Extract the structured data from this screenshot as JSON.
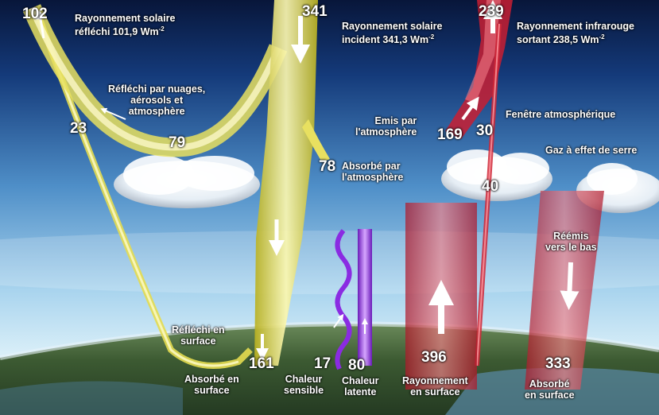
{
  "labels": {
    "reflected_title": "Rayonnement solaire\nréfléchi 101,9 Wm",
    "reflected_exp": "-2",
    "incident_title": "Rayonnement solaire\nincident 341,3 Wm",
    "incident_exp": "-2",
    "outgoing_ir_title": "Rayonnement infrarouge\nsortant 238,5 Wm",
    "outgoing_ir_exp": "-2",
    "reflected_clouds": "Réfléchi par nuages,\naérosols et\natmosphère",
    "emitted_atm": "Emis par\nl'atmosphère",
    "atm_window": "Fenêtre atmosphérique",
    "greenhouse": "Gaz à effet de serre",
    "absorbed_atm": "Absorbé par\nl'atmosphère",
    "back_radiation": "Réémis\nvers le bas",
    "reflected_surface": "Réfléchi en\nsurface",
    "absorbed_surface_left": "Absorbé en\nsurface",
    "sensible_heat": "Chaleur\nsensible",
    "latent_heat": "Chaleur\nlatente",
    "surface_radiation": "Rayonnement\nen surface",
    "absorbed_surface_right": "Absorbé\nen surface"
  },
  "values": {
    "reflected_total": "102",
    "incident_total": "341",
    "outgoing_ir_total": "239",
    "reflected_surface": "23",
    "reflected_clouds": "79",
    "absorbed_atm": "78",
    "emitted_atm": "169",
    "atm_window": "30",
    "cloud_emission": "40",
    "absorbed_surface": "161",
    "sensible_heat": "17",
    "latent_heat": "80",
    "surface_radiation": "396",
    "back_radiation": "333"
  },
  "colors": {
    "solar": "#e8e060",
    "infrared": "#d02838",
    "latent": "#8a2be2",
    "sky_top": "#0b1d46",
    "sky_bottom": "#bfe0f0"
  }
}
